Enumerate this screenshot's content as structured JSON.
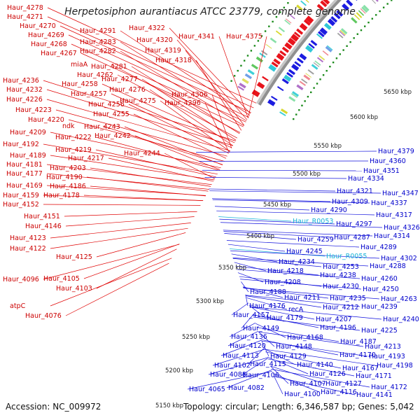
{
  "title": "Herpetosiphon aurantiacus ATCC 23779, complete genome",
  "footer": {
    "accession": "Accession: NC_009972",
    "summary": "Topology: circular; Length: 6,346,587 bp; Genes: 5,042"
  },
  "colors": {
    "forward": "#e8141c",
    "reverse": "#1c1ce0",
    "rna": "#30c8d8",
    "gc_dot": "#1a8a1a",
    "backbone": "#909090",
    "tick_label": "#222222"
  },
  "scale_ticks": [
    "5150 kbp",
    "5200 kbp",
    "5250 kbp",
    "5300 kbp",
    "5350 kbp",
    "5400 kbp",
    "5450 kbp",
    "5500 kbp",
    "5550 kbp",
    "5600 kbp",
    "5650 kbp"
  ],
  "left_labels": [
    "Haur_4278",
    "Haur_4271",
    "Haur_4270",
    "Haur_4269",
    "Haur_4268",
    "Haur_4267",
    "Haur_4291",
    "Haur_4283",
    "Haur_4282",
    "Haur_4322",
    "Haur_4320",
    "Haur_4319",
    "Haur_4318",
    "Haur_4341",
    "Haur_4375",
    "miaA",
    "Haur_4281",
    "Haur_4262",
    "Haur_4277",
    "Haur_4258",
    "Haur_4276",
    "Haur_4257",
    "Haur_4306",
    "Haur_4275",
    "Haur_4296",
    "Haur_4256",
    "Haur_4236",
    "Haur_4232",
    "Haur_4226",
    "Haur_4255",
    "Haur_4223",
    "Haur_4220",
    "ndk",
    "Haur_4243",
    "Haur_4242",
    "Haur_4222",
    "Haur_4209",
    "Haur_4192",
    "Haur_4219",
    "Haur_4189",
    "Haur_4217",
    "Haur_4244",
    "Haur_4181",
    "Haur_4203",
    "Haur_4177",
    "Haur_4190",
    "Haur_4169",
    "Haur_4186",
    "Haur_4159",
    "Haur_4178",
    "Haur_4152",
    "Haur_4151",
    "Haur_4146",
    "Haur_4123",
    "Haur_4122",
    "Haur_4125",
    "Haur_4096",
    "Haur_4105",
    "Haur_4103",
    "atpC",
    "Haur_4076"
  ],
  "right_labels": [
    "Haur_4379",
    "Haur_4360",
    "Haur_4351",
    "Haur_4334",
    "Haur_4347",
    "Haur_4321",
    "Haur_4337",
    "Haur_4309",
    "Haur_4290",
    "Haur_4317",
    "Haur_R0053",
    "Haur_4297",
    "Haur_4326",
    "Haur_4287",
    "Haur_4314",
    "Haur_4259",
    "Haur_4289",
    "Haur_4245",
    "Haur_R0055",
    "Haur_4302",
    "Haur_4234",
    "Haur_4253",
    "Haur_4288",
    "Haur_4218",
    "Haur_4238",
    "Haur_4260",
    "Haur_4208",
    "Haur_4230",
    "Haur_4250",
    "Haur_4188",
    "Haur_4211",
    "Haur_4235",
    "Haur_4263",
    "Haur_4176",
    "recA",
    "Haur_4212",
    "Haur_4239",
    "Haur_4157",
    "Haur_4179",
    "Haur_4207",
    "Haur_4240",
    "Haur_4149",
    "Haur_4196",
    "Haur_4225",
    "Haur_4136",
    "Haur_4168",
    "Haur_4187",
    "Haur_4120",
    "Haur_4148",
    "Haur_4213",
    "Haur_4113",
    "Haur_4129",
    "Haur_4170",
    "Haur_4193",
    "Haur_4102",
    "Haur_4115",
    "Haur_4140",
    "Haur_4167",
    "Haur_4198",
    "Haur_4088",
    "Haur_4106",
    "Haur_4126",
    "Haur_4171",
    "Haur_4065",
    "Haur_4082",
    "Haur_4107",
    "Haur_4127",
    "Haur_4172",
    "Haur_4100",
    "Haur_4116",
    "Haur_4141"
  ]
}
